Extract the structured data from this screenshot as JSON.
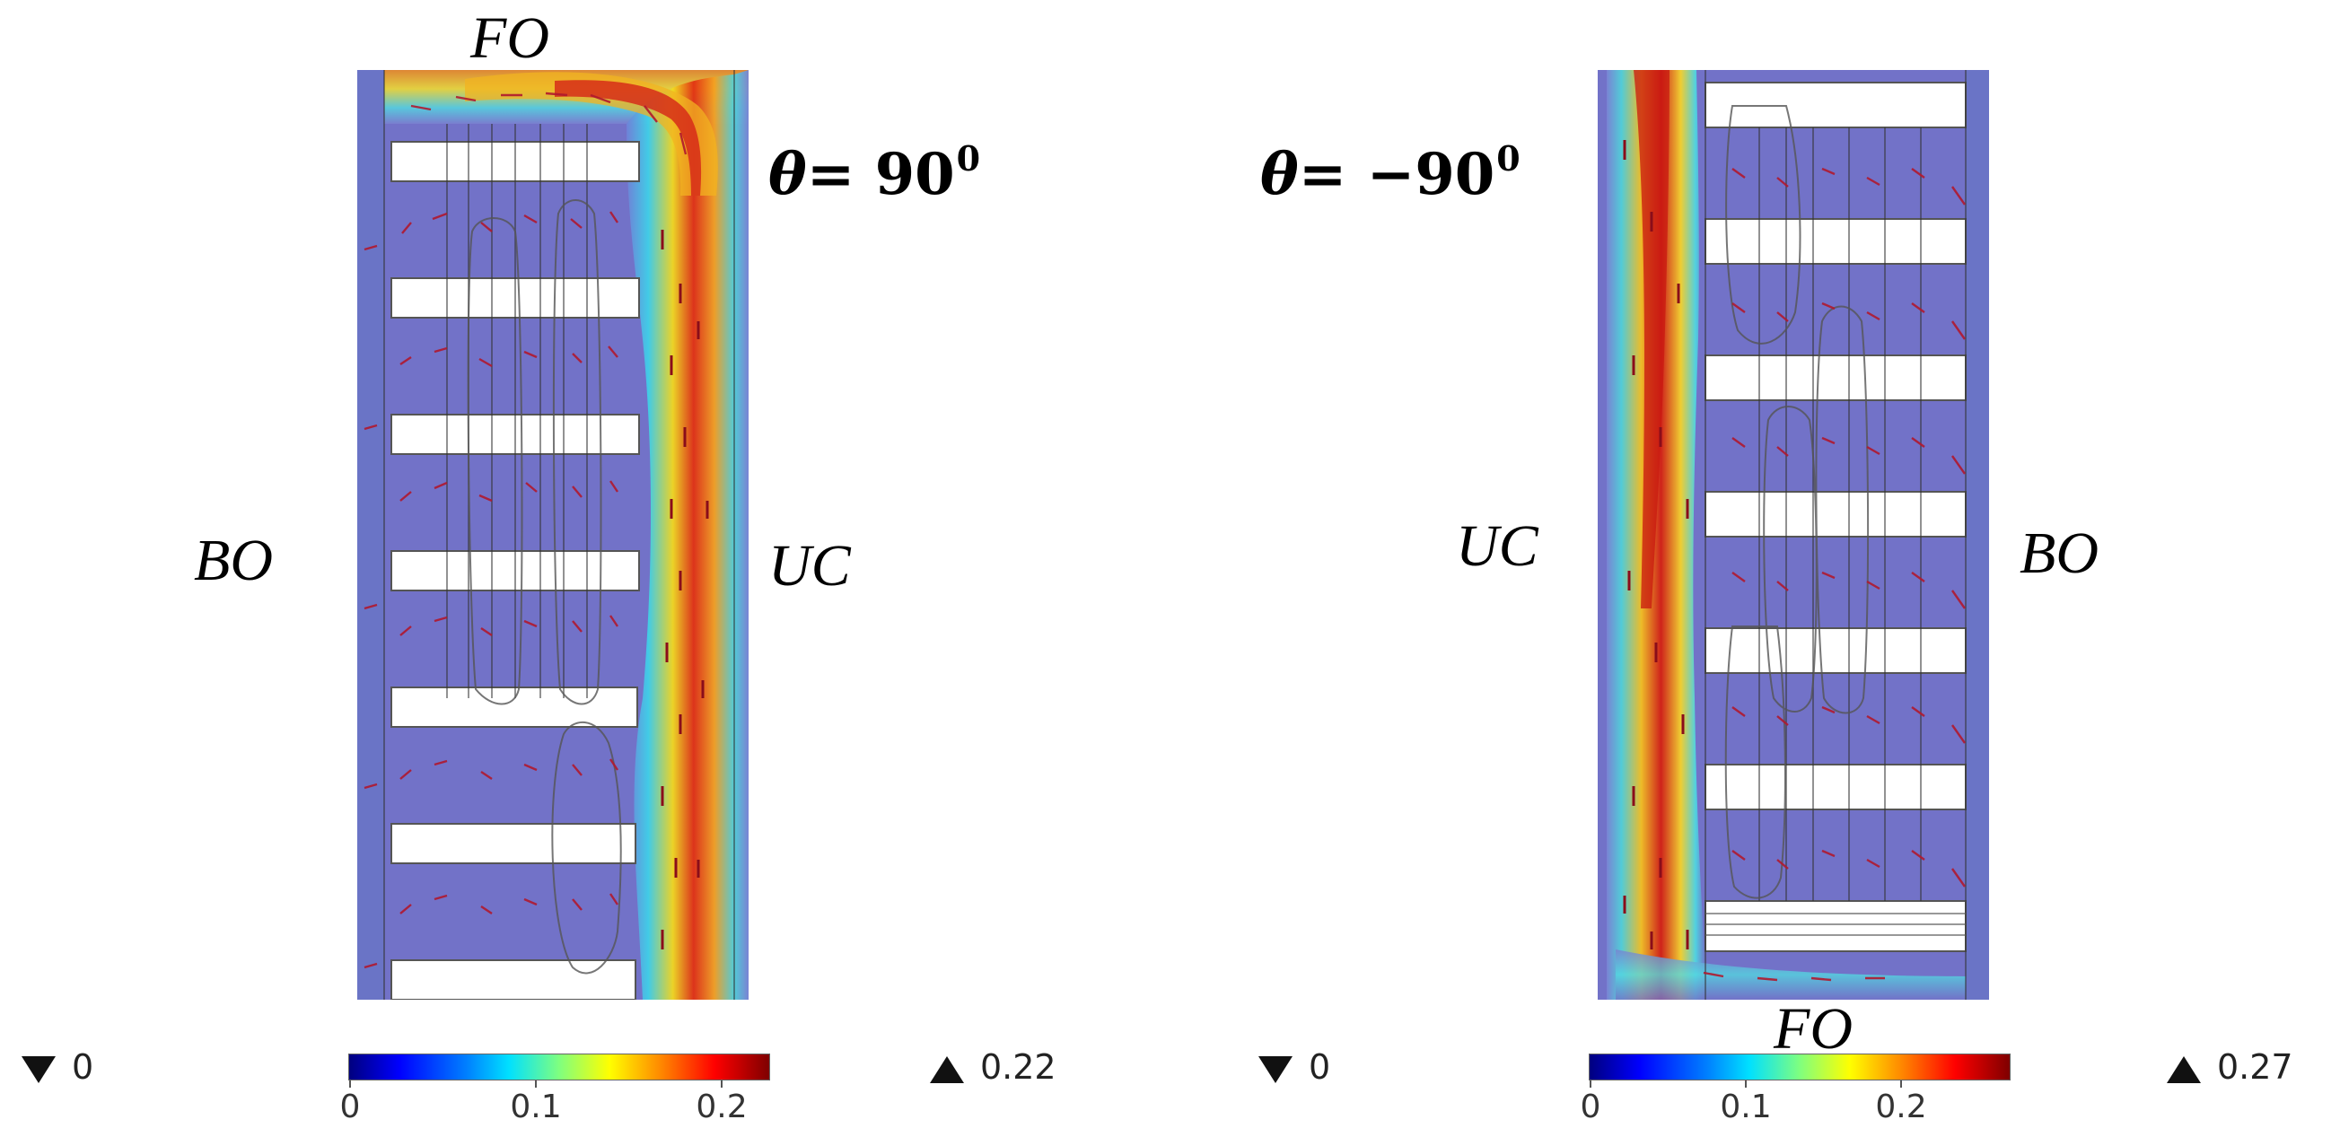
{
  "left_panel": {
    "label_top": "FO",
    "label_left": "BO",
    "label_right": "UC",
    "angle_symbol": "θ",
    "angle_value": "= 90",
    "angle_sup": "0",
    "legend_min": "0",
    "legend_max": "0.22",
    "colorbar_ticks": [
      "0",
      "0.1",
      "0.2"
    ]
  },
  "right_panel": {
    "label_bottom": "FO",
    "label_left": "UC",
    "label_right": "BO",
    "angle_symbol": "θ",
    "angle_value": "= −90",
    "angle_sup": "0",
    "legend_min": "0",
    "legend_max": "0.27",
    "colorbar_ticks": [
      "0",
      "0.1",
      "0.2"
    ]
  },
  "colors": {
    "background_field": "#7272c8",
    "fin": "#ffffff",
    "arrow": "#b0182e",
    "contour": "#555555"
  }
}
